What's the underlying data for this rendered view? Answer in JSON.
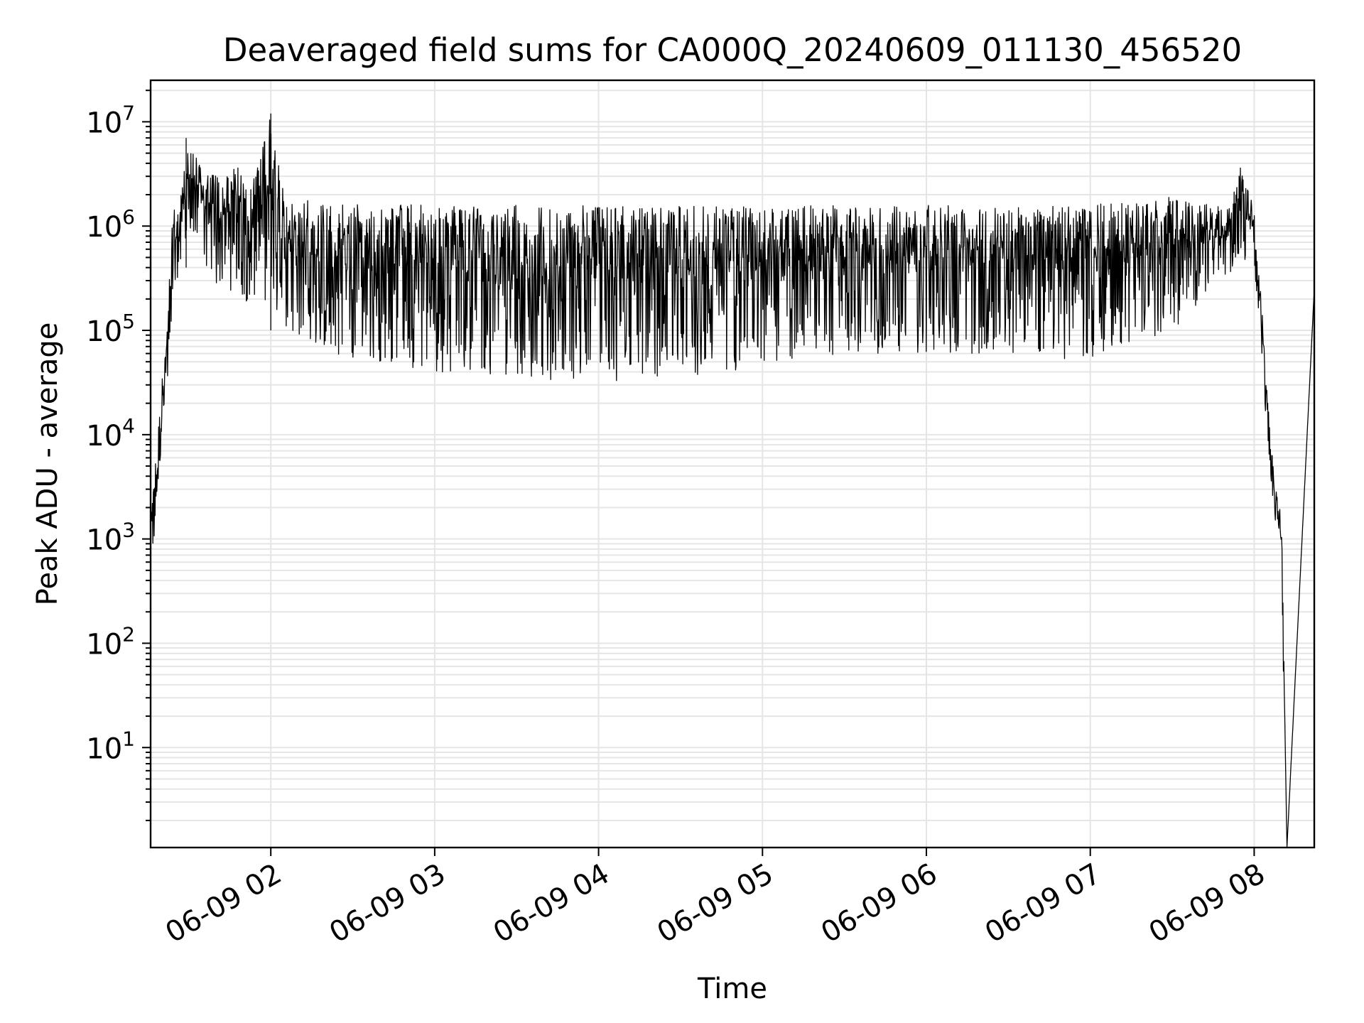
{
  "chart_data": {
    "type": "line",
    "title": "Deaveraged field sums for CA000Q_20240609_011130_456520",
    "xlabel": "Time",
    "ylabel": "Peak ADU - average",
    "yscale": "log",
    "xlim": [
      "2024-06-09 01:16",
      "2024-06-09 08:22"
    ],
    "ylim": [
      1.1,
      25000000
    ],
    "grid": true,
    "line_color": "#000000",
    "grid_color": "#e5e5e5",
    "x_ticks": [
      {
        "value": "2024-06-09 02:00",
        "label": "06-09 02"
      },
      {
        "value": "2024-06-09 03:00",
        "label": "06-09 03"
      },
      {
        "value": "2024-06-09 04:00",
        "label": "06-09 04"
      },
      {
        "value": "2024-06-09 05:00",
        "label": "06-09 05"
      },
      {
        "value": "2024-06-09 06:00",
        "label": "06-09 06"
      },
      {
        "value": "2024-06-09 07:00",
        "label": "06-09 07"
      },
      {
        "value": "2024-06-09 08:00",
        "label": "06-09 08"
      }
    ],
    "y_ticks": [
      {
        "value": 10,
        "base": "10",
        "exp": "1"
      },
      {
        "value": 100,
        "base": "10",
        "exp": "2"
      },
      {
        "value": 1000,
        "base": "10",
        "exp": "3"
      },
      {
        "value": 10000,
        "base": "10",
        "exp": "4"
      },
      {
        "value": 100000,
        "base": "10",
        "exp": "5"
      },
      {
        "value": 1000000,
        "base": "10",
        "exp": "6"
      },
      {
        "value": 10000000,
        "base": "10",
        "exp": "7"
      }
    ],
    "series": [
      {
        "name": "",
        "envelope": [
          {
            "t": "2024-06-09 01:16",
            "low": 450,
            "high": 1500
          },
          {
            "t": "2024-06-09 01:18",
            "low": 1300,
            "high": 7000
          },
          {
            "t": "2024-06-09 01:20",
            "low": 8000,
            "high": 32000
          },
          {
            "t": "2024-06-09 01:22",
            "low": 30000,
            "high": 100000
          },
          {
            "t": "2024-06-09 01:24",
            "low": 150000,
            "high": 1300000
          },
          {
            "t": "2024-06-09 01:27",
            "low": 250000,
            "high": 2000000
          },
          {
            "t": "2024-06-09 01:29",
            "low": 400000,
            "high": 7000000
          },
          {
            "t": "2024-06-09 01:35",
            "low": 450000,
            "high": 4000000
          },
          {
            "t": "2024-06-09 01:40",
            "low": 250000,
            "high": 3000000
          },
          {
            "t": "2024-06-09 01:50",
            "low": 200000,
            "high": 4500000
          },
          {
            "t": "2024-06-09 01:55",
            "low": 150000,
            "high": 3500000
          },
          {
            "t": "2024-06-09 02:00",
            "low": 100000,
            "high": 12000000
          },
          {
            "t": "2024-06-09 02:05",
            "low": 100000,
            "high": 2000000
          },
          {
            "t": "2024-06-09 02:20",
            "low": 60000,
            "high": 1800000
          },
          {
            "t": "2024-06-09 02:40",
            "low": 50000,
            "high": 1600000
          },
          {
            "t": "2024-06-09 03:00",
            "low": 40000,
            "high": 1600000
          },
          {
            "t": "2024-06-09 03:30",
            "low": 35000,
            "high": 1600000
          },
          {
            "t": "2024-06-09 04:00",
            "low": 32000,
            "high": 1600000
          },
          {
            "t": "2024-06-09 04:30",
            "low": 35000,
            "high": 1600000
          },
          {
            "t": "2024-06-09 05:00",
            "low": 45000,
            "high": 1600000
          },
          {
            "t": "2024-06-09 05:30",
            "low": 55000,
            "high": 1600000
          },
          {
            "t": "2024-06-09 06:00",
            "low": 60000,
            "high": 1600000
          },
          {
            "t": "2024-06-09 06:30",
            "low": 60000,
            "high": 1500000
          },
          {
            "t": "2024-06-09 07:00",
            "low": 50000,
            "high": 1600000
          },
          {
            "t": "2024-06-09 07:30",
            "low": 100000,
            "high": 1900000
          },
          {
            "t": "2024-06-09 07:50",
            "low": 350000,
            "high": 1500000
          },
          {
            "t": "2024-06-09 07:55",
            "low": 400000,
            "high": 3800000
          },
          {
            "t": "2024-06-09 08:00",
            "low": 350000,
            "high": 1500000
          },
          {
            "t": "2024-06-09 08:02",
            "low": 80000,
            "high": 400000
          },
          {
            "t": "2024-06-09 08:04",
            "low": 15000,
            "high": 50000
          },
          {
            "t": "2024-06-09 08:06",
            "low": 4000,
            "high": 9000
          },
          {
            "t": "2024-06-09 08:08",
            "low": 1200,
            "high": 3000
          },
          {
            "t": "2024-06-09 08:10",
            "low": 300,
            "high": 1800
          },
          {
            "t": "2024-06-09 08:12",
            "low": 1.1,
            "high": 1.1
          },
          {
            "t": "2024-06-09 08:22",
            "low": 250000,
            "high": 250000
          }
        ]
      }
    ]
  }
}
